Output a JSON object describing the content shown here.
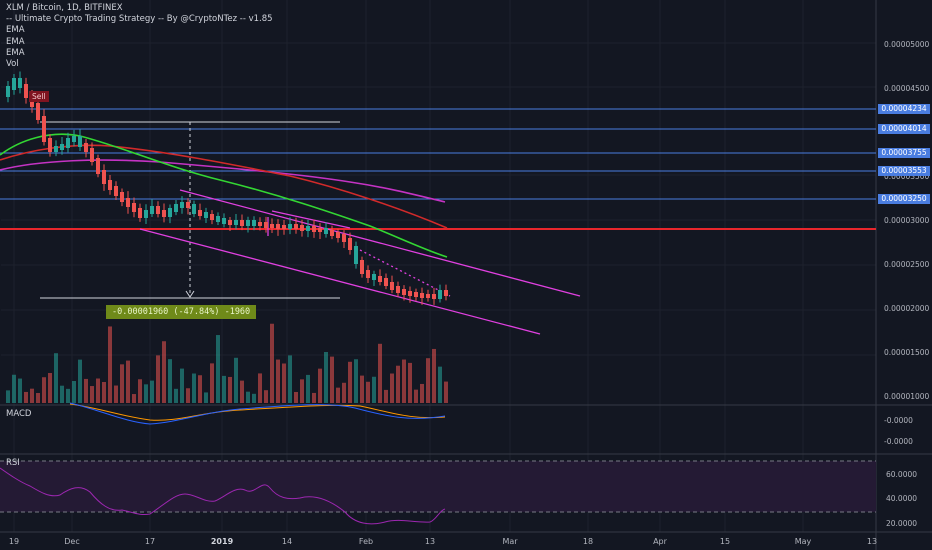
{
  "header": {
    "title": "XLM / Bitcoin, 1D, BITFINEX",
    "strategy": "-- Ultimate Crypto Trading Strategy -- By @CryptoNTez -- v1.85",
    "indicators": [
      "EMA",
      "EMA",
      "EMA",
      "Vol"
    ]
  },
  "signal": {
    "label": "Sell"
  },
  "measure": {
    "text": "-0.00001960 (-47.84%) -1960"
  },
  "panes": {
    "macd_label": "MACD",
    "rsi_label": "RSI"
  },
  "price_axis": [
    {
      "label": "0.00005000",
      "value": 5e-05
    },
    {
      "label": "0.00004500",
      "value": 4.5e-05
    },
    {
      "label": "0.00003500",
      "value": 3.5e-05
    },
    {
      "label": "0.00003000",
      "value": 3e-05
    },
    {
      "label": "0.00002500",
      "value": 2.5e-05
    },
    {
      "label": "0.00002000",
      "value": 2e-05
    },
    {
      "label": "0.00001500",
      "value": 1.5e-05
    },
    {
      "label": "0.00001000",
      "value": 1e-05
    }
  ],
  "price_tags": [
    {
      "label": "0.00004234",
      "value": 4.234e-05
    },
    {
      "label": "0.00004014",
      "value": 4.014e-05
    },
    {
      "label": "0.00003755",
      "value": 3.755e-05
    },
    {
      "label": "0.00003553",
      "value": 3.553e-05
    },
    {
      "label": "0.00003250",
      "value": 3.25e-05
    }
  ],
  "macd_axis": [
    "-0.0000",
    "-0.0000"
  ],
  "rsi_axis": [
    "60.0000",
    "40.0000",
    "20.0000"
  ],
  "time_axis": [
    {
      "label": "19",
      "bold": false
    },
    {
      "label": "Dec",
      "bold": false
    },
    {
      "label": "17",
      "bold": false
    },
    {
      "label": "2019",
      "bold": true
    },
    {
      "label": "14",
      "bold": false
    },
    {
      "label": "Feb",
      "bold": false
    },
    {
      "label": "13",
      "bold": false
    },
    {
      "label": "Mar",
      "bold": false
    },
    {
      "label": "18",
      "bold": false
    },
    {
      "label": "Apr",
      "bold": false
    },
    {
      "label": "15",
      "bold": false
    },
    {
      "label": "May",
      "bold": false
    },
    {
      "label": "13",
      "bold": false
    }
  ],
  "colors": {
    "background": "#131722",
    "up": "#26a69a",
    "down": "#ef5350",
    "support_red": "#e8262c",
    "level_blue": "#4a7de0",
    "channel_magenta": "#e040e0",
    "ema_green": "#33d633",
    "ema_red": "#d12a2a",
    "ema_purple": "#c433c4"
  }
}
